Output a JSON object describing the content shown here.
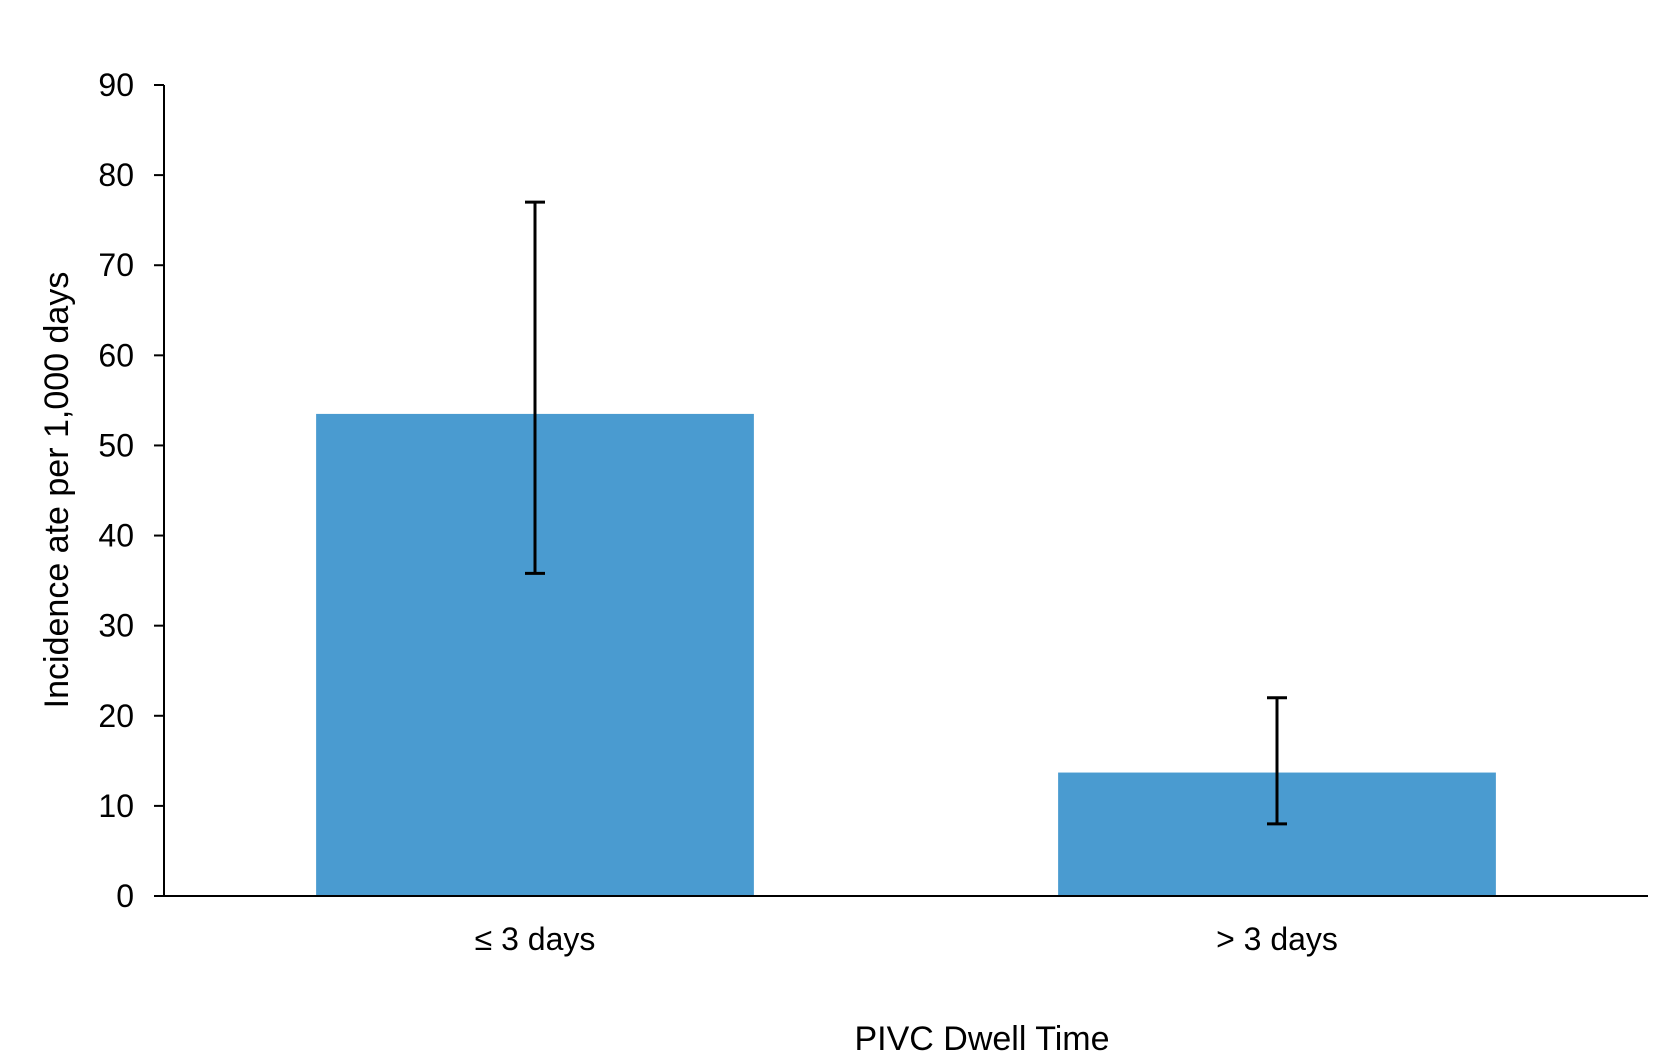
{
  "chart_data": {
    "type": "bar",
    "title": "",
    "xlabel": "PIVC Dwell Time",
    "ylabel": "Incidence ate per 1,000 days",
    "categories": [
      "≤ 3 days",
      "> 3 days"
    ],
    "values": [
      53.5,
      13.7
    ],
    "error_bars": [
      {
        "low": 35.8,
        "high": 77.0
      },
      {
        "low": 8.0,
        "high": 22.0
      }
    ],
    "ylim": [
      0,
      90
    ],
    "yticks": [
      "0",
      "10",
      "20",
      "30",
      "40",
      "50",
      "60",
      "70",
      "80",
      "90"
    ],
    "grid": false,
    "legend": "none",
    "bar_color": "#4A9BD0",
    "error_bar_color": "#000000"
  }
}
